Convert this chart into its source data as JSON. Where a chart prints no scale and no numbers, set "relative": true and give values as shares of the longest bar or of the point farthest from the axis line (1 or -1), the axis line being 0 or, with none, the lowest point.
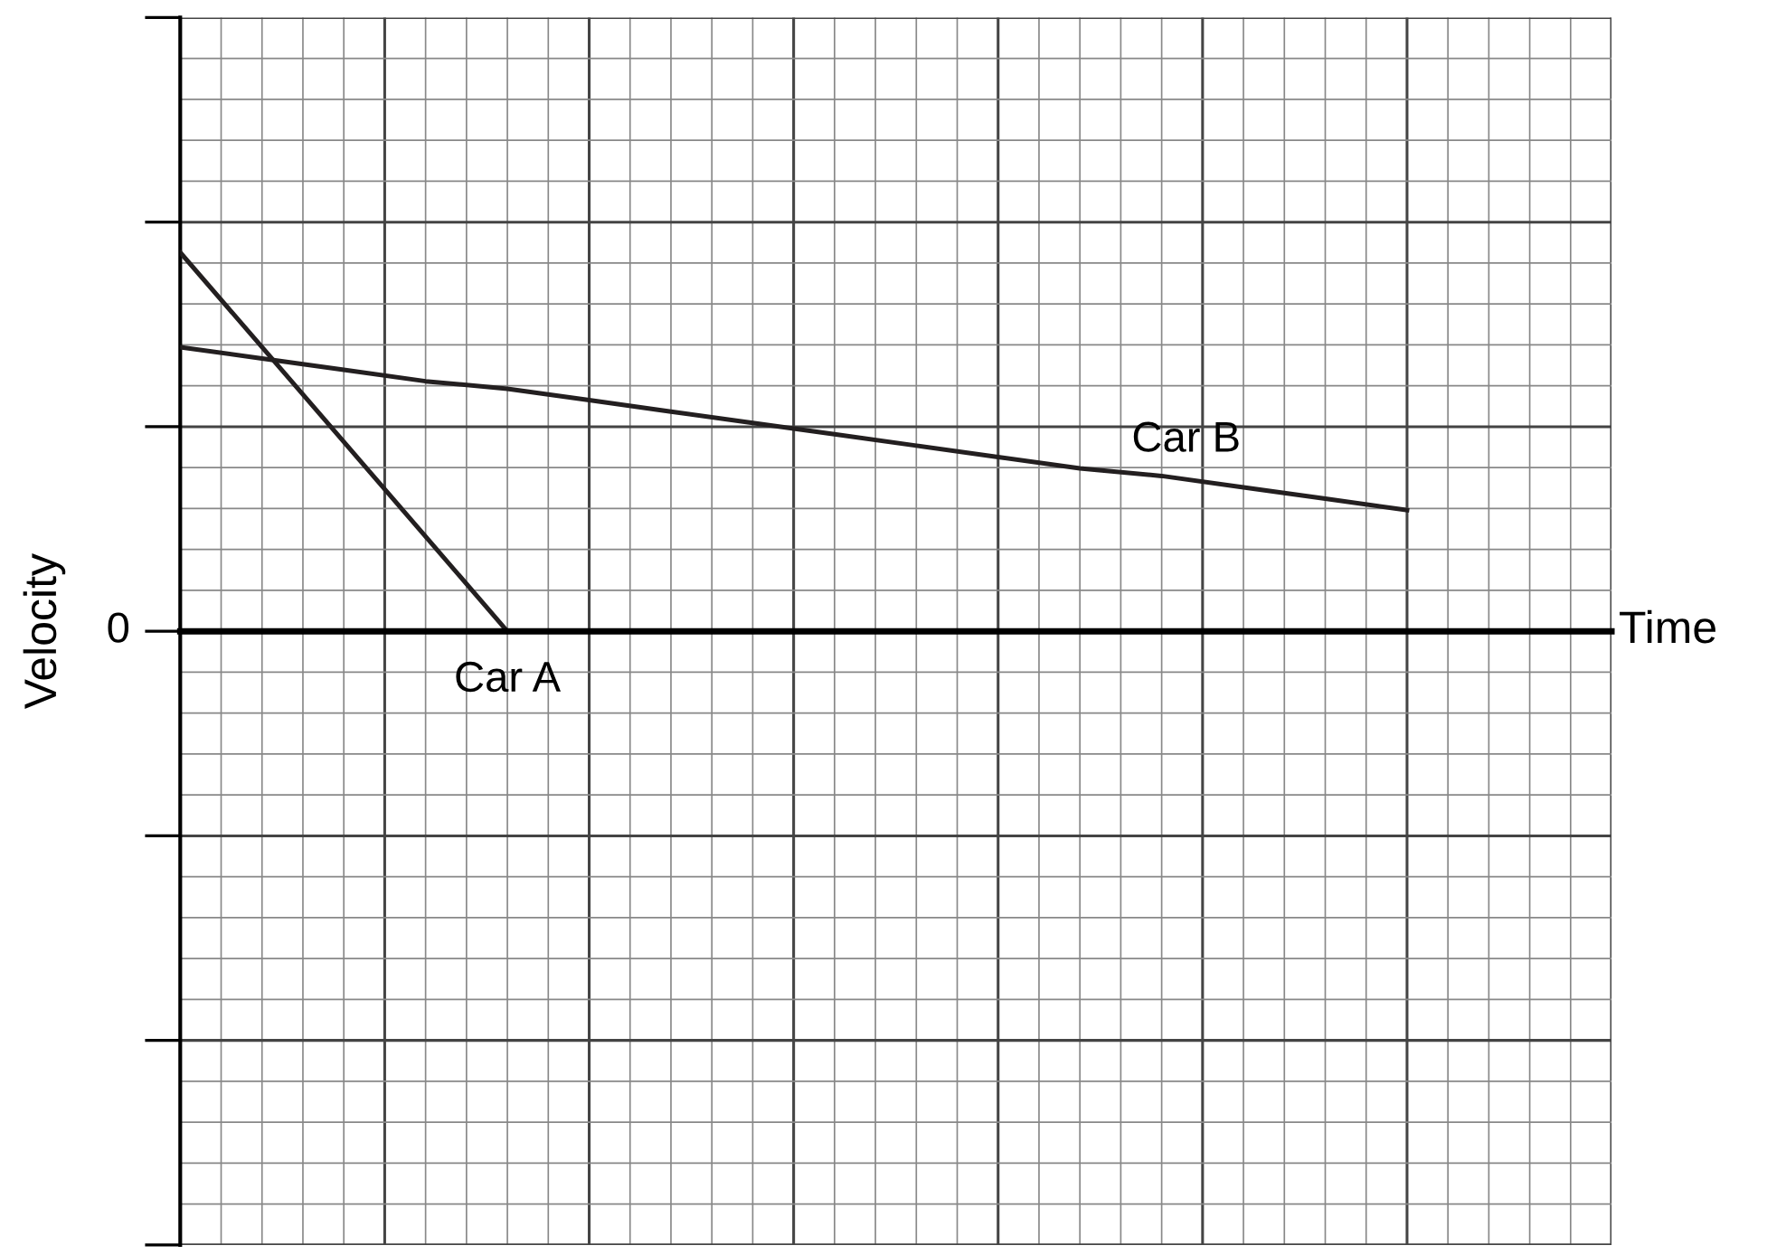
{
  "chart_data": {
    "type": "line",
    "relative": true,
    "xlabel": "Time",
    "ylabel": "Velocity",
    "categories": [
      null,
      null,
      null,
      null,
      null,
      null,
      null,
      null,
      null,
      null,
      null,
      null,
      null,
      null,
      null,
      null,
      null,
      null
    ],
    "annotations": [
      "0"
    ],
    "grid": true,
    "marker": "none",
    "line_style": "solid",
    "series": [
      {
        "name": "Car A",
        "color": "#231f20",
        "values": [
          1,
          0.75,
          0.5,
          0.25,
          0,
          null,
          null,
          null,
          null,
          null,
          null,
          null,
          null,
          null,
          null,
          null,
          null,
          null
        ]
      },
      {
        "name": "Car B",
        "color": "#231f20",
        "values": [
          0.75,
          0.72,
          0.69,
          0.66,
          0.64,
          0.61,
          0.58,
          0.55,
          0.52,
          0.49,
          0.46,
          0.43,
          0.41,
          0.38,
          0.35,
          0.32,
          null,
          null
        ]
      }
    ]
  }
}
